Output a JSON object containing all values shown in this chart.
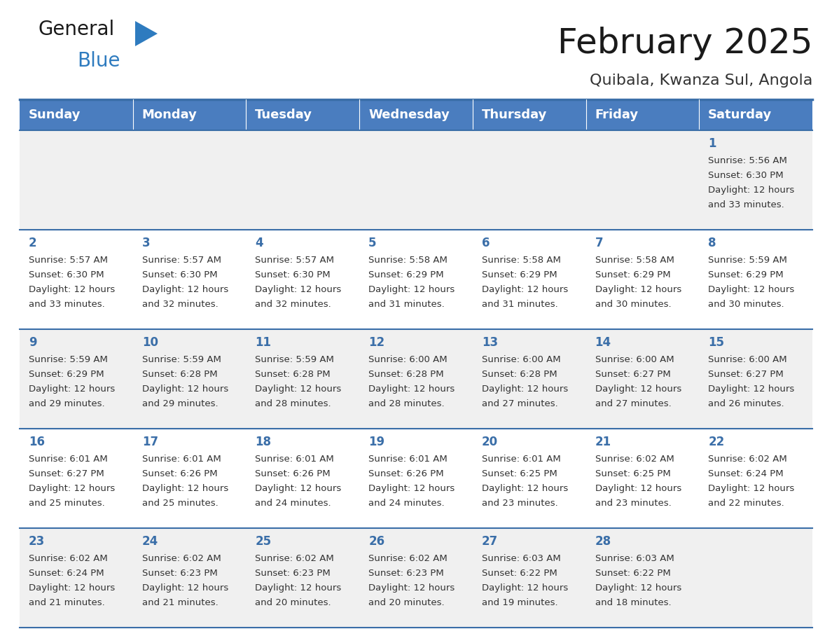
{
  "title": "February 2025",
  "subtitle": "Quibala, Kwanza Sul, Angola",
  "days_of_week": [
    "Sunday",
    "Monday",
    "Tuesday",
    "Wednesday",
    "Thursday",
    "Friday",
    "Saturday"
  ],
  "header_bg": "#4a7dbf",
  "header_text": "#ffffff",
  "cell_bg_light": "#f0f0f0",
  "cell_bg_white": "#ffffff",
  "border_color": "#3a6ea8",
  "day_num_color": "#3a6ea8",
  "text_color": "#333333",
  "title_color": "#1a1a1a",
  "subtitle_color": "#333333",
  "calendar_data": [
    [
      null,
      null,
      null,
      null,
      null,
      null,
      {
        "day": 1,
        "sunrise": "5:56 AM",
        "sunset": "6:30 PM",
        "daylight": "12 hours\nand 33 minutes."
      }
    ],
    [
      {
        "day": 2,
        "sunrise": "5:57 AM",
        "sunset": "6:30 PM",
        "daylight": "12 hours\nand 33 minutes."
      },
      {
        "day": 3,
        "sunrise": "5:57 AM",
        "sunset": "6:30 PM",
        "daylight": "12 hours\nand 32 minutes."
      },
      {
        "day": 4,
        "sunrise": "5:57 AM",
        "sunset": "6:30 PM",
        "daylight": "12 hours\nand 32 minutes."
      },
      {
        "day": 5,
        "sunrise": "5:58 AM",
        "sunset": "6:29 PM",
        "daylight": "12 hours\nand 31 minutes."
      },
      {
        "day": 6,
        "sunrise": "5:58 AM",
        "sunset": "6:29 PM",
        "daylight": "12 hours\nand 31 minutes."
      },
      {
        "day": 7,
        "sunrise": "5:58 AM",
        "sunset": "6:29 PM",
        "daylight": "12 hours\nand 30 minutes."
      },
      {
        "day": 8,
        "sunrise": "5:59 AM",
        "sunset": "6:29 PM",
        "daylight": "12 hours\nand 30 minutes."
      }
    ],
    [
      {
        "day": 9,
        "sunrise": "5:59 AM",
        "sunset": "6:29 PM",
        "daylight": "12 hours\nand 29 minutes."
      },
      {
        "day": 10,
        "sunrise": "5:59 AM",
        "sunset": "6:28 PM",
        "daylight": "12 hours\nand 29 minutes."
      },
      {
        "day": 11,
        "sunrise": "5:59 AM",
        "sunset": "6:28 PM",
        "daylight": "12 hours\nand 28 minutes."
      },
      {
        "day": 12,
        "sunrise": "6:00 AM",
        "sunset": "6:28 PM",
        "daylight": "12 hours\nand 28 minutes."
      },
      {
        "day": 13,
        "sunrise": "6:00 AM",
        "sunset": "6:28 PM",
        "daylight": "12 hours\nand 27 minutes."
      },
      {
        "day": 14,
        "sunrise": "6:00 AM",
        "sunset": "6:27 PM",
        "daylight": "12 hours\nand 27 minutes."
      },
      {
        "day": 15,
        "sunrise": "6:00 AM",
        "sunset": "6:27 PM",
        "daylight": "12 hours\nand 26 minutes."
      }
    ],
    [
      {
        "day": 16,
        "sunrise": "6:01 AM",
        "sunset": "6:27 PM",
        "daylight": "12 hours\nand 25 minutes."
      },
      {
        "day": 17,
        "sunrise": "6:01 AM",
        "sunset": "6:26 PM",
        "daylight": "12 hours\nand 25 minutes."
      },
      {
        "day": 18,
        "sunrise": "6:01 AM",
        "sunset": "6:26 PM",
        "daylight": "12 hours\nand 24 minutes."
      },
      {
        "day": 19,
        "sunrise": "6:01 AM",
        "sunset": "6:26 PM",
        "daylight": "12 hours\nand 24 minutes."
      },
      {
        "day": 20,
        "sunrise": "6:01 AM",
        "sunset": "6:25 PM",
        "daylight": "12 hours\nand 23 minutes."
      },
      {
        "day": 21,
        "sunrise": "6:02 AM",
        "sunset": "6:25 PM",
        "daylight": "12 hours\nand 23 minutes."
      },
      {
        "day": 22,
        "sunrise": "6:02 AM",
        "sunset": "6:24 PM",
        "daylight": "12 hours\nand 22 minutes."
      }
    ],
    [
      {
        "day": 23,
        "sunrise": "6:02 AM",
        "sunset": "6:24 PM",
        "daylight": "12 hours\nand 21 minutes."
      },
      {
        "day": 24,
        "sunrise": "6:02 AM",
        "sunset": "6:23 PM",
        "daylight": "12 hours\nand 21 minutes."
      },
      {
        "day": 25,
        "sunrise": "6:02 AM",
        "sunset": "6:23 PM",
        "daylight": "12 hours\nand 20 minutes."
      },
      {
        "day": 26,
        "sunrise": "6:02 AM",
        "sunset": "6:23 PM",
        "daylight": "12 hours\nand 20 minutes."
      },
      {
        "day": 27,
        "sunrise": "6:03 AM",
        "sunset": "6:22 PM",
        "daylight": "12 hours\nand 19 minutes."
      },
      {
        "day": 28,
        "sunrise": "6:03 AM",
        "sunset": "6:22 PM",
        "daylight": "12 hours\nand 18 minutes."
      },
      null
    ]
  ],
  "logo_text_general": "General",
  "logo_text_blue": "Blue",
  "fig_width": 11.88,
  "fig_height": 9.18,
  "dpi": 100
}
